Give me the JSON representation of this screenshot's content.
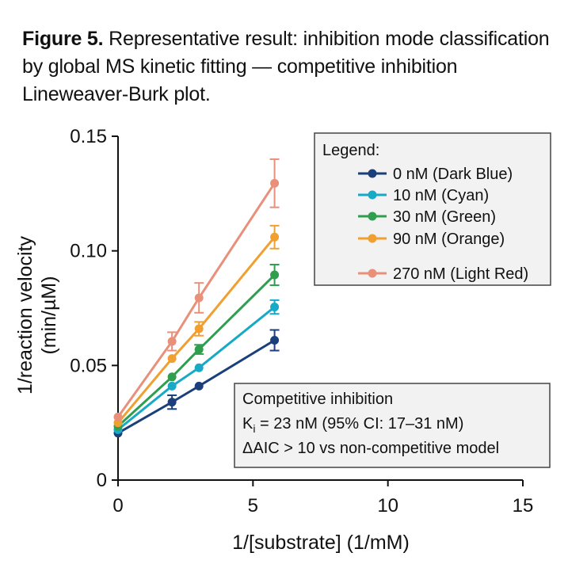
{
  "caption": {
    "label": "Figure 5.",
    "text": "Representative result: inhibition mode classification by global MS kinetic fitting — competitive inhibition Lineweaver-Burk plot."
  },
  "chart_data": {
    "type": "line",
    "xlabel": "1/[substrate] (1/mM)",
    "ylabel_line1": "1/reaction velocity",
    "ylabel_line2": "(min/µM)",
    "xlim": [
      0,
      15
    ],
    "ylim": [
      0,
      0.15
    ],
    "x_ticks": [
      0,
      5,
      10,
      15
    ],
    "y_ticks": [
      0,
      0.05,
      0.1,
      0.15
    ],
    "x_tick_labels": [
      "0",
      "5",
      "10",
      "15"
    ],
    "y_tick_labels": [
      "0",
      "0.05",
      "0.10",
      "0.15"
    ],
    "grid": false,
    "legend": {
      "title": "Legend:",
      "placement": "top-right",
      "entries": [
        "0 nM (Dark Blue)",
        "10 nM (Cyan)",
        "30 nM (Green)",
        "90 nM (Orange)",
        "270 nM (Light Red)"
      ]
    },
    "x": [
      0,
      2,
      3,
      5.8
    ],
    "series": [
      {
        "name": "0 nM (Dark Blue)",
        "color": "#1b3f7a",
        "values": [
          0.0205,
          0.034,
          0.041,
          0.061
        ],
        "errors": [
          0,
          0.003,
          0,
          0.0045
        ]
      },
      {
        "name": "10 nM (Cyan)",
        "color": "#17a9c6",
        "values": [
          0.022,
          0.041,
          0.049,
          0.0755
        ],
        "errors": [
          0,
          0,
          0,
          0.003
        ]
      },
      {
        "name": "30 nM (Green)",
        "color": "#2f9e4f",
        "values": [
          0.0235,
          0.045,
          0.057,
          0.0895
        ],
        "errors": [
          0,
          0,
          0.002,
          0.0045
        ]
      },
      {
        "name": "90 nM (Orange)",
        "color": "#f0a030",
        "values": [
          0.025,
          0.053,
          0.066,
          0.106
        ],
        "errors": [
          0,
          0,
          0.003,
          0.005
        ]
      },
      {
        "name": "270 nM (Light Red)",
        "color": "#e8907a",
        "values": [
          0.0275,
          0.0605,
          0.0795,
          0.1295
        ],
        "errors": [
          0,
          0.004,
          0.0065,
          0.0105
        ]
      }
    ],
    "annotation": {
      "line1": "Competitive inhibition",
      "line2_prefix": "K",
      "line2_sub": "i",
      "line2_rest": " = 23 nM (95% CI: 17–31 nM)",
      "line3": "ΔAIC > 10 vs non-competitive model",
      "placement": "lower-right"
    }
  }
}
